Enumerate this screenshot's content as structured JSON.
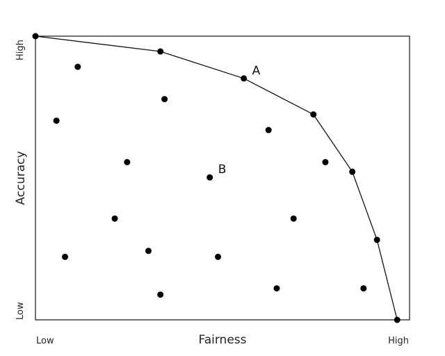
{
  "chart_data": {
    "type": "scatter",
    "title": "",
    "xlabel": "Fairness",
    "ylabel": "Accuracy",
    "x_tick_labels": {
      "low": "Low",
      "high": "High"
    },
    "y_tick_labels": {
      "low": "Low",
      "high": "High"
    },
    "xlim": [
      0,
      100
    ],
    "ylim": [
      0,
      100
    ],
    "grid": false,
    "frontier": [
      {
        "x": 0,
        "y": 100
      },
      {
        "x": 33.4,
        "y": 94.6
      },
      {
        "x": 55.7,
        "y": 85.1
      },
      {
        "x": 74.3,
        "y": 72.4
      },
      {
        "x": 84.7,
        "y": 52.2
      },
      {
        "x": 91.3,
        "y": 28.2
      },
      {
        "x": 96.7,
        "y": 0
      }
    ],
    "points": [
      {
        "x": 11.3,
        "y": 89.2
      },
      {
        "x": 5.6,
        "y": 70.2
      },
      {
        "x": 34.5,
        "y": 77.8
      },
      {
        "x": 24.5,
        "y": 55.6
      },
      {
        "x": 62.3,
        "y": 66.9
      },
      {
        "x": 46.6,
        "y": 50.2
      },
      {
        "x": 77.5,
        "y": 55.6
      },
      {
        "x": 21.2,
        "y": 35.7
      },
      {
        "x": 69.0,
        "y": 35.7
      },
      {
        "x": 7.9,
        "y": 22.2
      },
      {
        "x": 30.2,
        "y": 24.3
      },
      {
        "x": 48.8,
        "y": 22.2
      },
      {
        "x": 33.4,
        "y": 8.9
      },
      {
        "x": 64.5,
        "y": 11.1
      },
      {
        "x": 87.7,
        "y": 11.1
      }
    ],
    "annotations": [
      {
        "text": "A",
        "x": 55.7,
        "y": 85.1
      },
      {
        "text": "B",
        "x": 46.6,
        "y": 50.2
      }
    ],
    "colors": {
      "marker": "#000000",
      "line": "#111111",
      "frame": "#111111"
    }
  }
}
